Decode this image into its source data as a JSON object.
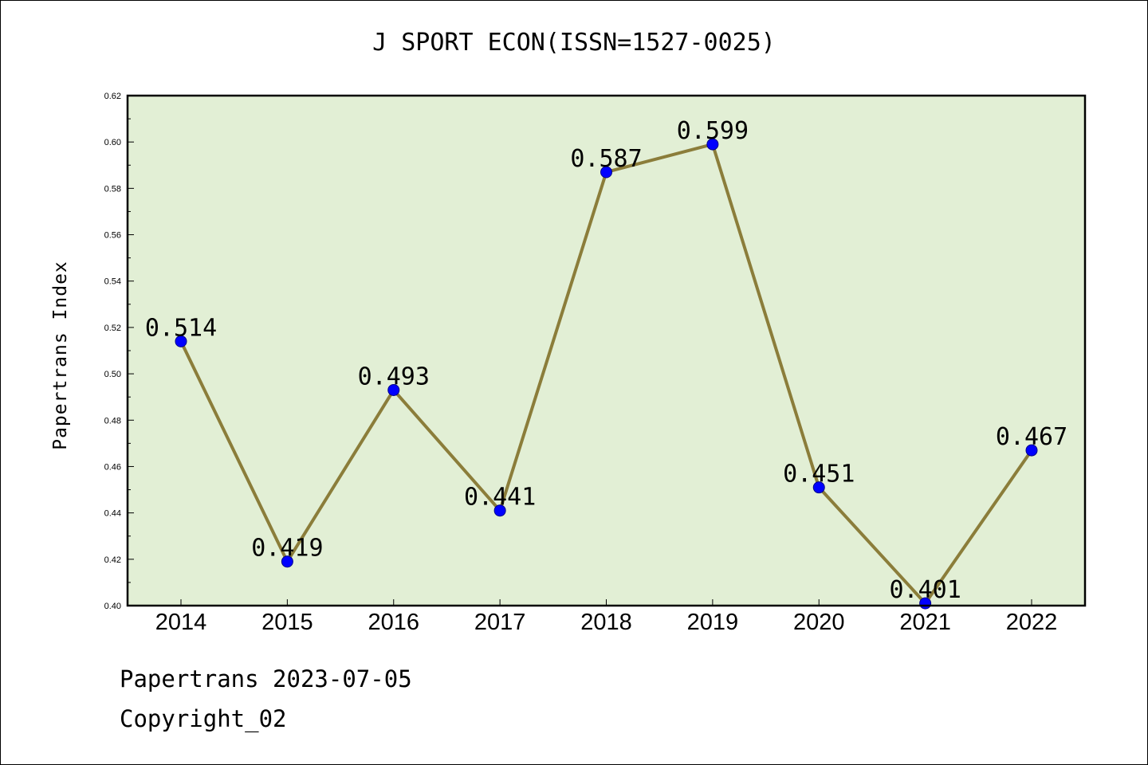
{
  "chart_data": {
    "type": "line",
    "title": "J SPORT ECON(ISSN=1527-0025)",
    "ylabel": "Papertrans Index",
    "xlabel": "",
    "x": [
      "2014",
      "2015",
      "2016",
      "2017",
      "2018",
      "2019",
      "2020",
      "2021",
      "2022"
    ],
    "series": [
      {
        "values": [
          0.514,
          0.419,
          0.493,
          0.441,
          0.587,
          0.599,
          0.451,
          0.401,
          0.467
        ]
      }
    ],
    "data_labels": [
      "0.514",
      "0.419",
      "0.493",
      "0.441",
      "0.587",
      "0.599",
      "0.451",
      "0.401",
      "0.467"
    ],
    "ylim": [
      0.4,
      0.62
    ],
    "yticks": [
      "0.40",
      "0.42",
      "0.44",
      "0.46",
      "0.48",
      "0.50",
      "0.52",
      "0.54",
      "0.56",
      "0.58",
      "0.60",
      "0.62"
    ],
    "grid": false,
    "legend": "none",
    "colors": {
      "line": "#8b7d3a",
      "marker": "#0000ff",
      "plot_bg": "#e2efd5"
    }
  },
  "footer": {
    "line1": "Papertrans 2023-07-05",
    "line2": "Copyright_02"
  }
}
